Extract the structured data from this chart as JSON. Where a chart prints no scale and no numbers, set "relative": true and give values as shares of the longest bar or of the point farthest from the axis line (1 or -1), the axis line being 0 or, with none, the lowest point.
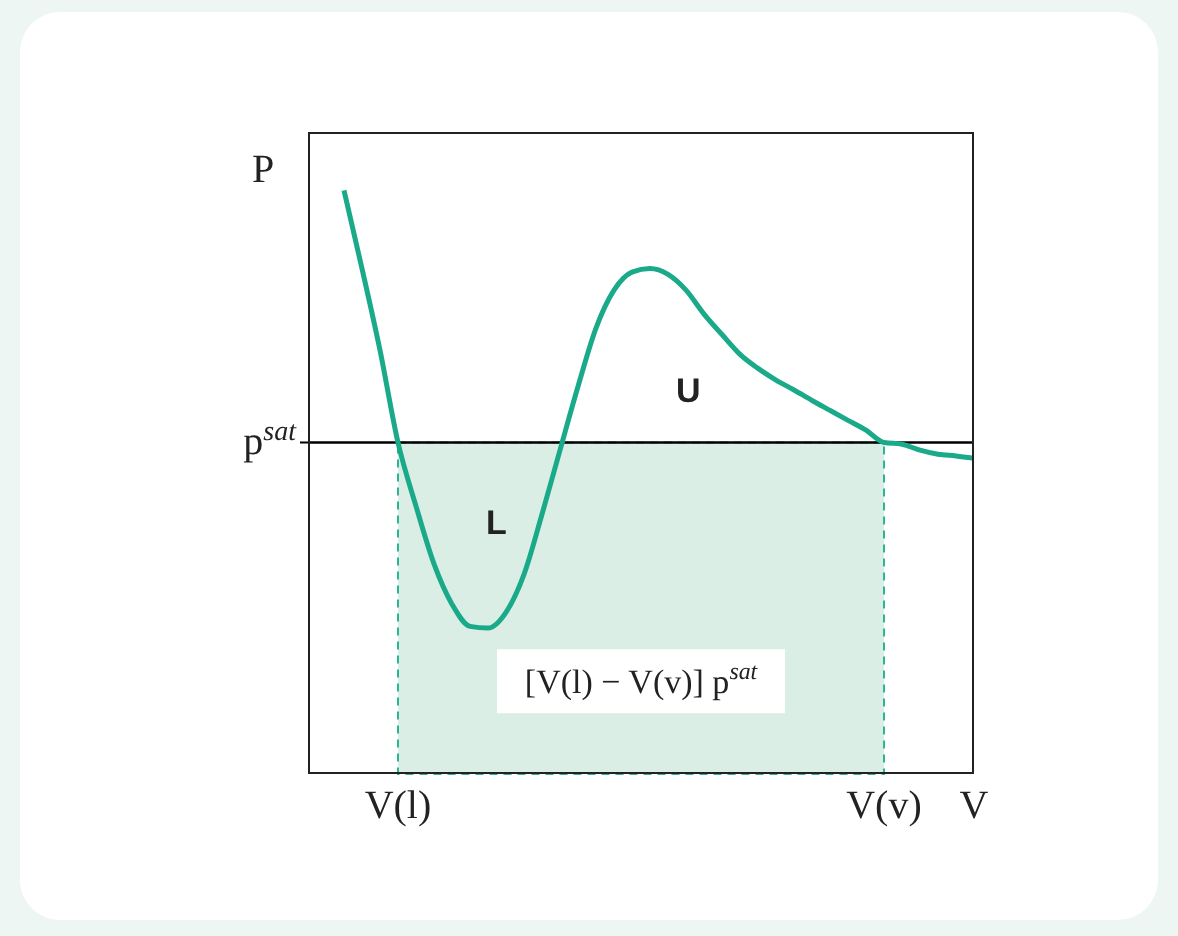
{
  "chart_data": {
    "type": "line",
    "relative": true,
    "ylabel": "P",
    "tick_labels": "x",
    "categories": [
      null,
      null,
      null,
      "V(l)",
      null,
      null,
      null,
      null,
      null,
      null,
      null,
      null,
      null,
      null,
      null,
      null,
      null,
      null,
      null,
      null,
      null,
      null,
      null,
      null,
      null,
      null,
      null,
      null,
      null,
      null,
      "V(v)",
      null,
      null,
      null,
      null,
      "V"
    ],
    "series": [
      {
        "color": "#1aaa8a",
        "values": [
          1.0,
          0.866,
          0.726,
          0.568,
          0.459,
          0.36,
          0.291,
          0.253,
          0.25,
          0.277,
          0.342,
          0.445,
          0.555,
          0.664,
          0.764,
          0.829,
          0.86,
          0.866,
          0.856,
          0.829,
          0.788,
          0.753,
          0.719,
          0.695,
          0.675,
          0.658,
          0.64,
          0.623,
          0.606,
          0.589,
          0.568,
          0.565,
          0.555,
          0.548,
          0.545,
          0.541
        ]
      }
    ],
    "ref_lines": [
      {
        "axis": "y",
        "value": 0.568,
        "label": "p$^{sat}$",
        "color": "#000000"
      }
    ],
    "bands": [
      {
        "axis": "x",
        "from": "V(l)",
        "to": "V(v)",
        "label": "[V(l) − V(v)] p$^{sat}$",
        "color": "#daeee6"
      }
    ],
    "annotations": [
      "L",
      "U"
    ]
  }
}
